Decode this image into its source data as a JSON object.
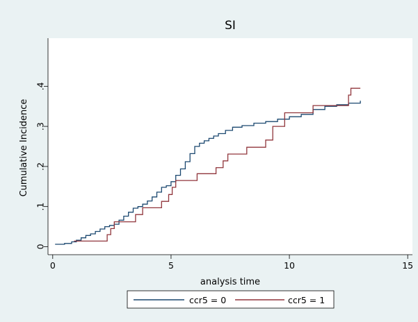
{
  "chart_data": {
    "type": "line",
    "step": true,
    "title": "SI",
    "xlabel": "analysis time",
    "ylabel": "Cumulative Incidence",
    "xlim": [
      -0.2,
      15.2
    ],
    "ylim": [
      -0.02,
      0.52
    ],
    "xticks": [
      0,
      5,
      10,
      15
    ],
    "xtick_labels": [
      "0",
      "5",
      "10",
      "15"
    ],
    "yticks": [
      0,
      0.1,
      0.2,
      0.3,
      0.4
    ],
    "ytick_labels": [
      "0",
      ".1",
      ".2",
      ".3",
      ".4"
    ],
    "grid": false,
    "legend": {
      "position": "bottom"
    },
    "series": [
      {
        "name": "ccr5 = 0",
        "color": "#1a476f",
        "points": [
          [
            0.1,
            0.006
          ],
          [
            0.5,
            0.008
          ],
          [
            0.8,
            0.012
          ],
          [
            1.0,
            0.016
          ],
          [
            1.2,
            0.022
          ],
          [
            1.4,
            0.028
          ],
          [
            1.6,
            0.032
          ],
          [
            1.8,
            0.038
          ],
          [
            2.0,
            0.044
          ],
          [
            2.2,
            0.05
          ],
          [
            2.4,
            0.053
          ],
          [
            2.6,
            0.056
          ],
          [
            2.8,
            0.066
          ],
          [
            3.0,
            0.076
          ],
          [
            3.2,
            0.086
          ],
          [
            3.4,
            0.096
          ],
          [
            3.6,
            0.1
          ],
          [
            3.8,
            0.106
          ],
          [
            4.0,
            0.114
          ],
          [
            4.2,
            0.124
          ],
          [
            4.4,
            0.136
          ],
          [
            4.6,
            0.148
          ],
          [
            4.8,
            0.152
          ],
          [
            5.0,
            0.162
          ],
          [
            5.2,
            0.178
          ],
          [
            5.4,
            0.194
          ],
          [
            5.6,
            0.212
          ],
          [
            5.8,
            0.232
          ],
          [
            6.0,
            0.25
          ],
          [
            6.2,
            0.258
          ],
          [
            6.4,
            0.264
          ],
          [
            6.6,
            0.27
          ],
          [
            6.8,
            0.276
          ],
          [
            7.0,
            0.282
          ],
          [
            7.3,
            0.29
          ],
          [
            7.6,
            0.298
          ],
          [
            8.0,
            0.302
          ],
          [
            8.5,
            0.308
          ],
          [
            9.0,
            0.312
          ],
          [
            9.5,
            0.318
          ],
          [
            10.0,
            0.324
          ],
          [
            10.5,
            0.33
          ],
          [
            11.0,
            0.342
          ],
          [
            11.5,
            0.35
          ],
          [
            12.0,
            0.354
          ],
          [
            12.5,
            0.358
          ],
          [
            13.0,
            0.364
          ]
        ]
      },
      {
        "name": "ccr5 = 1",
        "color": "#90353b",
        "points": [
          [
            0.9,
            0.014
          ],
          [
            2.3,
            0.03
          ],
          [
            2.45,
            0.045
          ],
          [
            2.6,
            0.062
          ],
          [
            3.5,
            0.08
          ],
          [
            3.8,
            0.097
          ],
          [
            4.6,
            0.113
          ],
          [
            4.9,
            0.13
          ],
          [
            5.05,
            0.148
          ],
          [
            5.2,
            0.165
          ],
          [
            6.1,
            0.182
          ],
          [
            6.9,
            0.197
          ],
          [
            7.2,
            0.214
          ],
          [
            7.4,
            0.231
          ],
          [
            8.2,
            0.248
          ],
          [
            9.0,
            0.266
          ],
          [
            9.3,
            0.3
          ],
          [
            9.8,
            0.334
          ],
          [
            11.0,
            0.352
          ],
          [
            12.5,
            0.378
          ],
          [
            12.6,
            0.395
          ],
          [
            13.0,
            0.395
          ]
        ]
      }
    ]
  }
}
